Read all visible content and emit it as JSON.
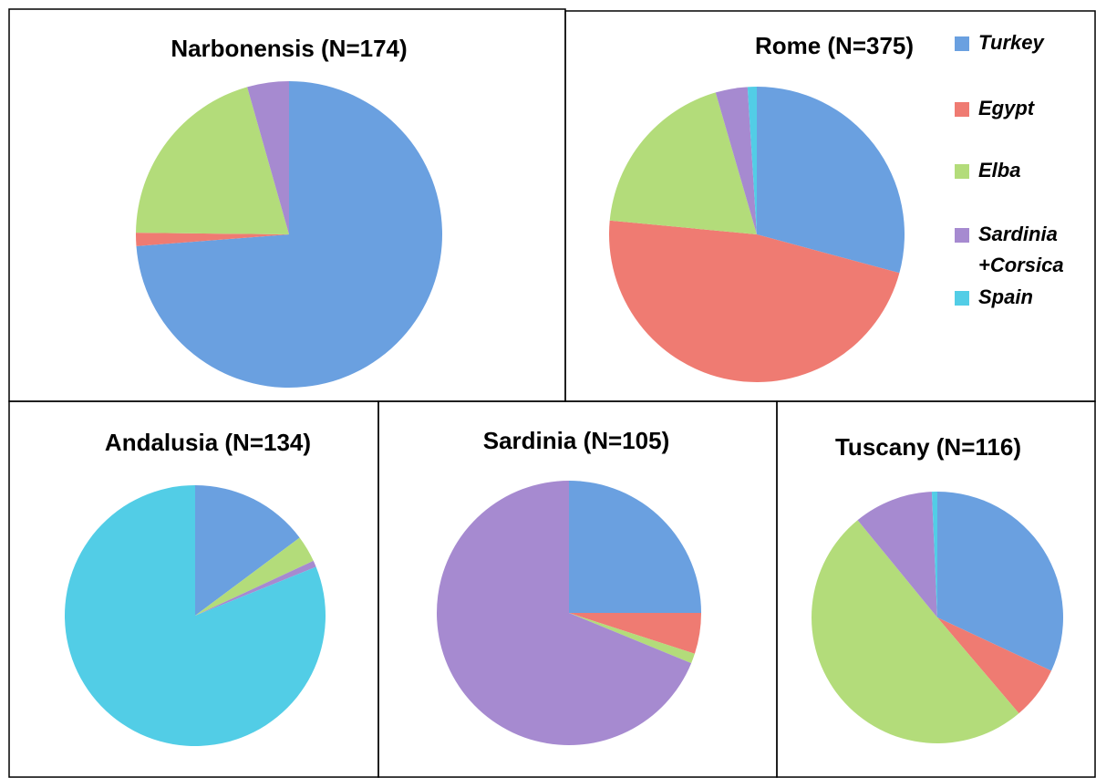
{
  "legend": {
    "categories": [
      "Turkey",
      "Egypt",
      "Elba",
      "Sardinia +Corsica",
      "Spain"
    ],
    "colors": [
      "#6aa0e0",
      "#ef7b72",
      "#b3dc7a",
      "#a68ad0",
      "#52cde6"
    ]
  },
  "chart_data": [
    {
      "type": "pie",
      "title": "Narbonensis (N=174)",
      "values": [
        73.7,
        1.4,
        20.4,
        4.4,
        0
      ]
    },
    {
      "type": "pie",
      "title": "Rome (N=375)",
      "values": [
        29.2,
        47.3,
        19.0,
        3.5,
        1.0
      ]
    },
    {
      "type": "pie",
      "title": "Andalusia (N=134)",
      "values": [
        14.8,
        0,
        3.3,
        0.8,
        81.1
      ]
    },
    {
      "type": "pie",
      "title": "Sardinia (N=105)",
      "values": [
        25.0,
        5.0,
        1.2,
        68.8,
        0
      ]
    },
    {
      "type": "pie",
      "title": "Tuscany (N=116)",
      "values": [
        31.9,
        6.8,
        50.2,
        10.2,
        0.7
      ]
    }
  ]
}
